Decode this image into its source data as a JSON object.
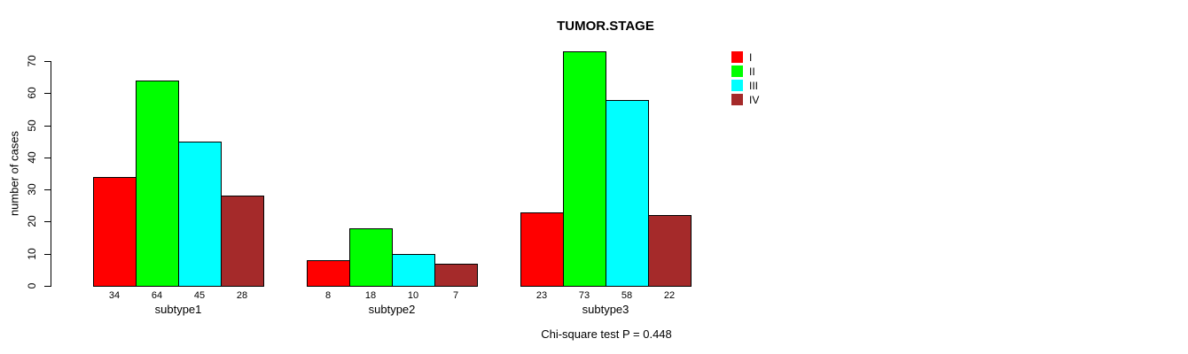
{
  "chart_data": {
    "type": "bar",
    "title": "TUMOR.STAGE",
    "xlabel": "",
    "ylabel": "number of cases",
    "ylim": [
      0,
      70
    ],
    "yticks": [
      0,
      10,
      20,
      30,
      40,
      50,
      60,
      70
    ],
    "categories": [
      "subtype1",
      "subtype2",
      "subtype3"
    ],
    "series": [
      {
        "name": "I",
        "color": "#ff0000",
        "values": [
          34,
          8,
          23
        ]
      },
      {
        "name": "II",
        "color": "#00ff00",
        "values": [
          64,
          18,
          73
        ]
      },
      {
        "name": "III",
        "color": "#00ffff",
        "values": [
          45,
          10,
          58
        ]
      },
      {
        "name": "IV",
        "color": "#a52a2a",
        "values": [
          28,
          7,
          22
        ]
      }
    ],
    "bar_value_labels": [
      [
        "34",
        "64",
        "45",
        "28"
      ],
      [
        "8",
        "18",
        "10",
        "7"
      ],
      [
        "23",
        "73",
        "58",
        "22"
      ]
    ],
    "grid": false,
    "legend_position": "right",
    "annotation": "Chi-square test P = 0.448"
  }
}
